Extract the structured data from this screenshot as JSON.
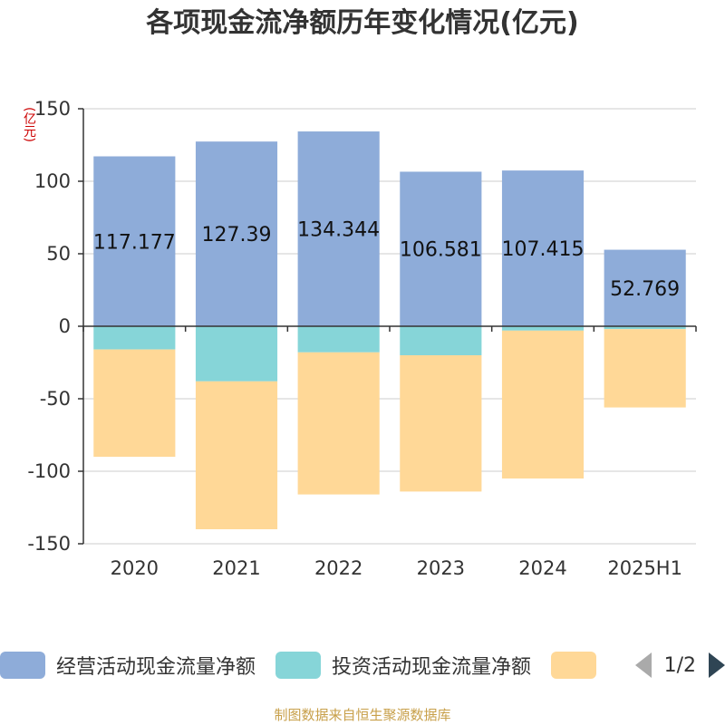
{
  "chart_data": {
    "type": "bar",
    "stacked": true,
    "title": "各项现金流净额历年变化情况(亿元)",
    "ylabel": "(亿元)",
    "categories": [
      "2020",
      "2021",
      "2022",
      "2023",
      "2024",
      "2025H1"
    ],
    "ylim": [
      -150,
      150
    ],
    "yticks": [
      150,
      100,
      50,
      0,
      -50,
      -100,
      -150
    ],
    "grid": true,
    "legend_position": "bottom",
    "series": [
      {
        "name": "经营活动现金流量净额",
        "color": "#8eacd9",
        "values": [
          117.177,
          127.39,
          134.344,
          106.581,
          107.415,
          52.769
        ],
        "labels": [
          "117.177",
          "127.39",
          "134.344",
          "106.581",
          "107.415",
          "52.769"
        ]
      },
      {
        "name": "投资活动现金流量净额",
        "color": "#86d5d8",
        "values": [
          -16,
          -38,
          -18,
          -20,
          -3,
          -2
        ]
      },
      {
        "name": "",
        "color": "#ffd897",
        "values": [
          -74,
          -102,
          -98,
          -94,
          -102,
          -54
        ]
      }
    ]
  },
  "legend_pager": {
    "text": "1/2"
  },
  "source": "制图数据来自恒生聚源数据库"
}
